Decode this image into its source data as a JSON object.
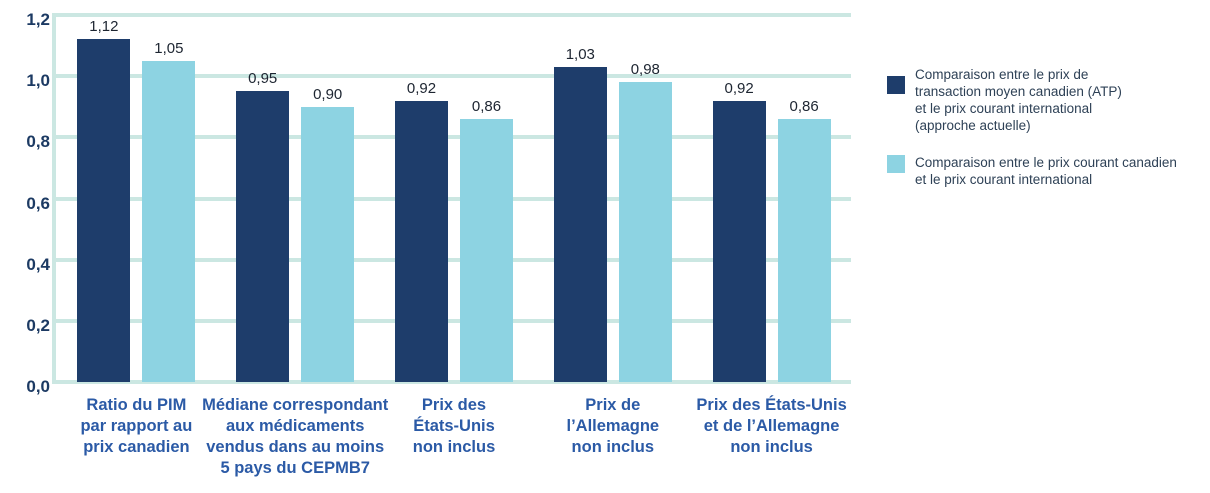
{
  "chart_data": {
    "type": "bar",
    "title": "",
    "xlabel": "",
    "ylabel": "",
    "grid": true,
    "legend_position": "right",
    "categories": [
      "Ratio du PIM\npar rapport au\nprix canadien",
      "Médiane correspondant\naux médicaments\nvendus dans au moins\n5 pays du CEPMB7",
      "Prix des\nÉtats-Unis\nnon inclus",
      "Prix de\nl’Allemagne\nnon inclus",
      "Prix des États-Unis\net de l’Allemagne\nnon inclus"
    ],
    "series": [
      {
        "name": "Comparaison entre le prix de\ntransaction moyen canadien (ATP)\net le prix courant international\n(approche actuelle)",
        "color": "#1e3d6b",
        "values": [
          1.12,
          0.95,
          0.92,
          1.03,
          0.92
        ],
        "value_labels": [
          "1,12",
          "0,95",
          "0,92",
          "1,03",
          "0,92"
        ]
      },
      {
        "name": "Comparaison entre le prix courant canadien\net le prix courant international",
        "color": "#8dd3e2",
        "values": [
          1.05,
          0.9,
          0.86,
          0.98,
          0.86
        ],
        "value_labels": [
          "1,05",
          "0,90",
          "0,86",
          "0,98",
          "0,86"
        ]
      }
    ],
    "y_axis": {
      "min": 0,
      "max": 1.2,
      "tick_values": [
        0,
        0.2,
        0.4,
        0.6,
        0.8,
        1.0,
        1.2
      ],
      "tick_labels": [
        "0,0",
        "0,2",
        "0,4",
        "0,6",
        "0,8",
        "1,0",
        "1,2"
      ]
    }
  },
  "colors": {
    "background": "#ffffff",
    "grid": "#cbe7e2",
    "axis_tick_text": "#1c3a63",
    "category_text": "#2b5aa6",
    "value_text": "#1d2531",
    "legend_text": "#2e4156",
    "series1": "#1e3d6b",
    "series2": "#8dd3e2"
  }
}
